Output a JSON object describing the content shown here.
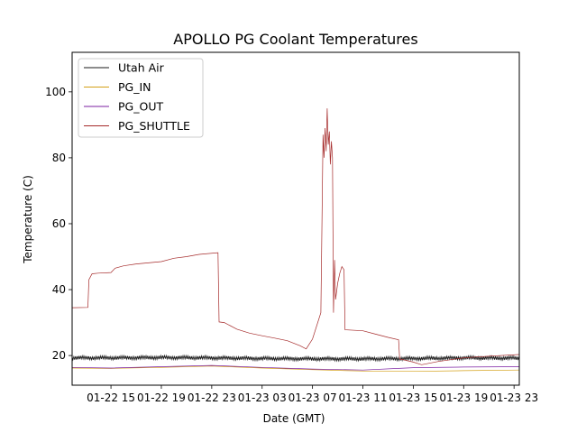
{
  "chart_data": {
    "type": "line",
    "title": "APOLLO PG Coolant Temperatures",
    "xlabel": "Date (GMT)",
    "ylabel": "Temperature (C)",
    "xlim": [
      "01-22 11:55",
      "01-23 23:25"
    ],
    "ylim": [
      11,
      112
    ],
    "x_ticks": [
      {
        "value": "01-22 15:00",
        "label": "01-22 15"
      },
      {
        "value": "01-22 19:00",
        "label": "01-22 19"
      },
      {
        "value": "01-22 23:00",
        "label": "01-22 23"
      },
      {
        "value": "01-23 03:00",
        "label": "01-23 03"
      },
      {
        "value": "01-23 07:00",
        "label": "01-23 07"
      },
      {
        "value": "01-23 11:00",
        "label": "01-23 11"
      },
      {
        "value": "01-23 15:00",
        "label": "01-23 15"
      },
      {
        "value": "01-23 19:00",
        "label": "01-23 19"
      },
      {
        "value": "01-23 23:00",
        "label": "01-23 23"
      }
    ],
    "y_ticks": [
      20,
      40,
      60,
      80,
      100
    ],
    "grid": false,
    "legend_position": "top-left",
    "series": [
      {
        "name": "Utah Air",
        "color": "#1a1a1a",
        "noise": 0.6,
        "points": [
          [
            "01-22 11:55",
            19.3
          ],
          [
            "01-22 15:00",
            19.3
          ],
          [
            "01-22 19:00",
            19.4
          ],
          [
            "01-22 23:00",
            19.3
          ],
          [
            "01-23 03:00",
            19.1
          ],
          [
            "01-23 07:00",
            19.0
          ],
          [
            "01-23 11:00",
            19.0
          ],
          [
            "01-23 15:00",
            19.1
          ],
          [
            "01-23 19:00",
            19.3
          ],
          [
            "01-23 23:25",
            19.2
          ]
        ]
      },
      {
        "name": "PG_IN",
        "color": "#d4a017",
        "noise": 0,
        "points": [
          [
            "01-22 11:55",
            16.2
          ],
          [
            "01-22 15:00",
            16.1
          ],
          [
            "01-22 19:00",
            16.4
          ],
          [
            "01-22 23:00",
            16.8
          ],
          [
            "01-23 03:00",
            16.2
          ],
          [
            "01-23 07:00",
            15.7
          ],
          [
            "01-23 11:00",
            15.3
          ],
          [
            "01-23 15:00",
            15.2
          ],
          [
            "01-23 19:00",
            15.4
          ],
          [
            "01-23 23:25",
            15.6
          ]
        ]
      },
      {
        "name": "PG_OUT",
        "color": "#7b1fa2",
        "noise": 0,
        "points": [
          [
            "01-22 11:55",
            16.4
          ],
          [
            "01-22 15:00",
            16.2
          ],
          [
            "01-22 19:00",
            16.6
          ],
          [
            "01-22 23:00",
            17.0
          ],
          [
            "01-23 03:00",
            16.4
          ],
          [
            "01-23 07:00",
            15.9
          ],
          [
            "01-23 11:00",
            15.6
          ],
          [
            "01-23 15:00",
            16.3
          ],
          [
            "01-23 19:00",
            16.5
          ],
          [
            "01-23 23:25",
            16.6
          ]
        ]
      },
      {
        "name": "PG_SHUTTLE",
        "color": "#a52a2a",
        "noise": 0,
        "points": [
          [
            "01-22 11:55",
            34.5
          ],
          [
            "01-22 13:10",
            34.6
          ],
          [
            "01-22 13:15",
            43.0
          ],
          [
            "01-22 13:30",
            44.8
          ],
          [
            "01-22 14:00",
            45.0
          ],
          [
            "01-22 15:00",
            45.2
          ],
          [
            "01-22 15:20",
            46.5
          ],
          [
            "01-22 16:00",
            47.2
          ],
          [
            "01-22 17:00",
            47.8
          ],
          [
            "01-22 19:00",
            48.5
          ],
          [
            "01-22 20:00",
            49.5
          ],
          [
            "01-22 21:00",
            50.0
          ],
          [
            "01-22 22:00",
            50.7
          ],
          [
            "01-22 23:30",
            51.2
          ],
          [
            "01-22 23:35",
            30.2
          ],
          [
            "01-23 00:00",
            30.0
          ],
          [
            "01-23 01:00",
            28.0
          ],
          [
            "01-23 02:00",
            26.8
          ],
          [
            "01-23 03:00",
            26.0
          ],
          [
            "01-23 04:00",
            25.3
          ],
          [
            "01-23 05:00",
            24.5
          ],
          [
            "01-23 06:00",
            23.0
          ],
          [
            "01-23 06:30",
            22.0
          ],
          [
            "01-23 07:00",
            25.0
          ],
          [
            "01-23 07:30",
            31.0
          ],
          [
            "01-23 07:40",
            33.0
          ],
          [
            "01-23 07:50",
            87.0
          ],
          [
            "01-23 07:55",
            80.0
          ],
          [
            "01-23 08:00",
            89.0
          ],
          [
            "01-23 08:05",
            82.0
          ],
          [
            "01-23 08:10",
            95.0
          ],
          [
            "01-23 08:15",
            84.0
          ],
          [
            "01-23 08:20",
            88.0
          ],
          [
            "01-23 08:25",
            78.0
          ],
          [
            "01-23 08:30",
            85.0
          ],
          [
            "01-23 08:35",
            80.0
          ],
          [
            "01-23 08:40",
            33.0
          ],
          [
            "01-23 08:45",
            49.0
          ],
          [
            "01-23 08:50",
            37.0
          ],
          [
            "01-23 09:00",
            42.0
          ],
          [
            "01-23 09:10",
            45.0
          ],
          [
            "01-23 09:20",
            47.0
          ],
          [
            "01-23 09:30",
            46.0
          ],
          [
            "01-23 09:35",
            27.8
          ],
          [
            "01-23 11:00",
            27.5
          ],
          [
            "01-23 12:00",
            26.5
          ],
          [
            "01-23 13:00",
            25.5
          ],
          [
            "01-23 13:50",
            24.8
          ],
          [
            "01-23 13:55",
            19.0
          ],
          [
            "01-23 15:00",
            18.0
          ],
          [
            "01-23 15:40",
            17.2
          ],
          [
            "01-23 17:00",
            18.2
          ],
          [
            "01-23 19:00",
            19.3
          ],
          [
            "01-23 21:00",
            19.8
          ],
          [
            "01-23 23:25",
            20.3
          ]
        ]
      }
    ]
  }
}
